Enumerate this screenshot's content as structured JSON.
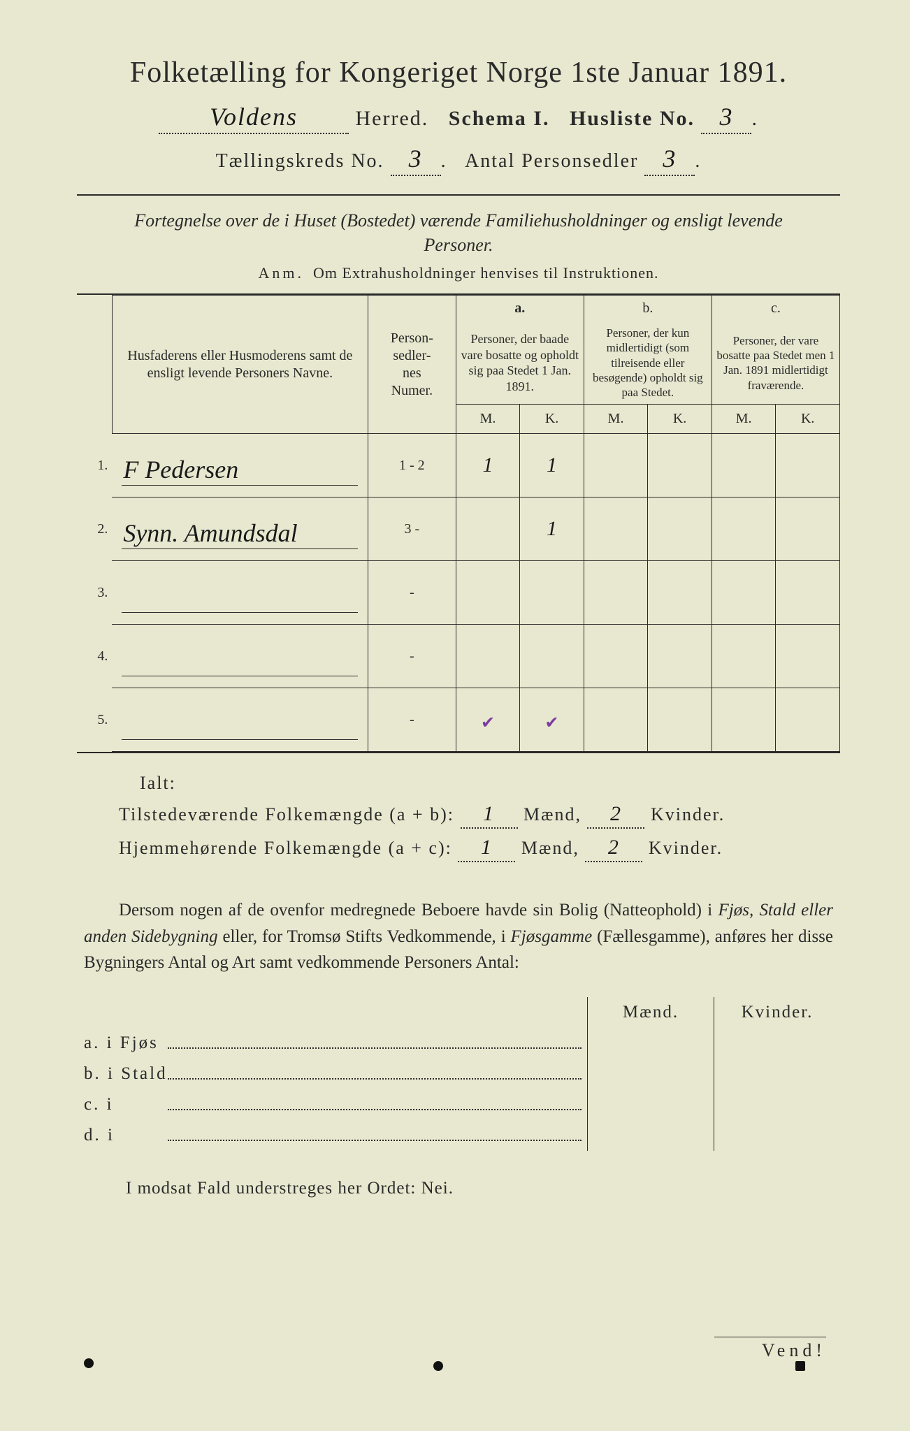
{
  "header": {
    "title": "Folketælling for Kongeriget Norge 1ste Januar 1891.",
    "herred_value": "Voldens",
    "herred_label": "Herred.",
    "schema_label": "Schema I.",
    "husliste_label": "Husliste No.",
    "husliste_no": "3",
    "kreds_label": "Tællingskreds No.",
    "kreds_no": "3",
    "antal_label": "Antal Personsedler",
    "antal_value": "3"
  },
  "description": {
    "line1": "Fortegnelse over de i Huset (Bostedet) værende Familiehusholdninger og ensligt levende Personer.",
    "anm_label": "Anm.",
    "anm_text": "Om Extrahusholdninger henvises til Instruktionen."
  },
  "table": {
    "col_names": "Husfaderens eller Husmoderens samt de ensligt levende Personers Navne.",
    "col_numer": "Person-\nsedler-\nnes\nNumer.",
    "col_a_label": "a.",
    "col_a_text": "Personer, der baade vare bosatte og opholdt sig paa Stedet 1 Jan. 1891.",
    "col_b_label": "b.",
    "col_b_text": "Personer, der kun midlertidigt (som tilreisende eller besøgende) opholdt sig paa Stedet.",
    "col_c_label": "c.",
    "col_c_text": "Personer, der vare bosatte paa Stedet men 1 Jan. 1891 midlertidigt fraværende.",
    "m": "M.",
    "k": "K.",
    "rows": [
      {
        "n": "1.",
        "name": "F Pedersen",
        "numer": "1 - 2",
        "a_m": "1",
        "a_k": "1",
        "b_m": "",
        "b_k": "",
        "c_m": "",
        "c_k": ""
      },
      {
        "n": "2.",
        "name": "Synn. Amundsdal",
        "numer": "3 -",
        "a_m": "",
        "a_k": "1",
        "b_m": "",
        "b_k": "",
        "c_m": "",
        "c_k": ""
      },
      {
        "n": "3.",
        "name": "",
        "numer": "-",
        "a_m": "",
        "a_k": "",
        "b_m": "",
        "b_k": "",
        "c_m": "",
        "c_k": ""
      },
      {
        "n": "4.",
        "name": "",
        "numer": "-",
        "a_m": "",
        "a_k": "",
        "b_m": "",
        "b_k": "",
        "c_m": "",
        "c_k": ""
      },
      {
        "n": "5.",
        "name": "",
        "numer": "-",
        "a_m": "",
        "a_k": "",
        "b_m": "",
        "b_k": "",
        "c_m": "",
        "c_k": ""
      }
    ]
  },
  "totals": {
    "ialt": "Ialt:",
    "tilstede_label": "Tilstedeværende Folkemængde (a + b):",
    "tilstede_m": "1",
    "tilstede_k": "2",
    "hjemme_label": "Hjemmehørende Folkemængde (a + c):",
    "hjemme_m": "1",
    "hjemme_k": "2",
    "maend": "Mænd,",
    "kvinder": "Kvinder."
  },
  "paragraph": "Dersom nogen af de ovenfor medregnede Beboere havde sin Bolig (Natteophold) i Fjøs, Stald eller anden Sidebygning eller, for Tromsø Stifts Vedkommende, i Fjøsgamme (Fællesgamme), anføres her disse Bygningers Antal og Art samt vedkommende Personers Antal:",
  "buildings": {
    "maend": "Mænd.",
    "kvinder": "Kvinder.",
    "rows": [
      {
        "lead": "a.  i    Fjøs"
      },
      {
        "lead": "b.  i    Stald"
      },
      {
        "lead": "c.  i"
      },
      {
        "lead": "d.  i"
      }
    ]
  },
  "nei_line": "I modsat Fald understreges her Ordet: Nei.",
  "vend": "Vend!"
}
